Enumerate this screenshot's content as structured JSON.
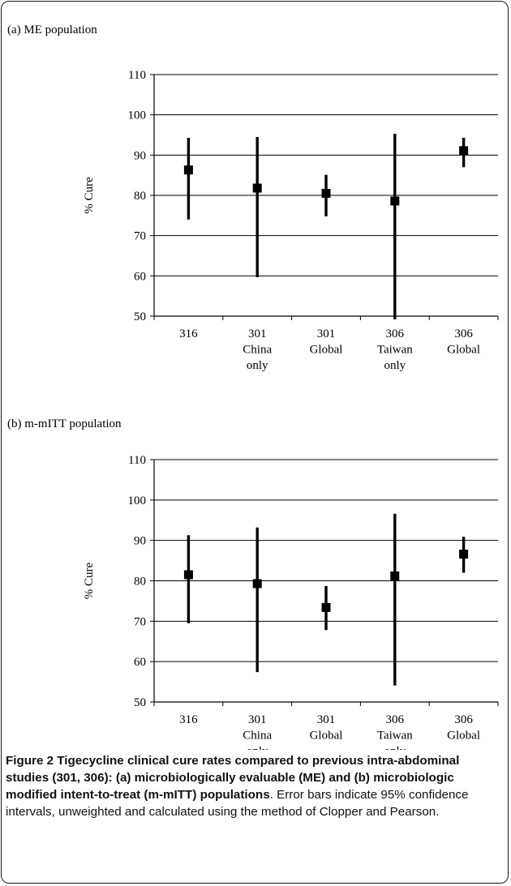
{
  "chart_data": [
    {
      "type": "scatter",
      "panel_label": "(a) ME population",
      "ylabel": "% Cure",
      "ylim": [
        50,
        110
      ],
      "yticks": [
        50,
        60,
        70,
        80,
        90,
        100,
        110
      ],
      "grid": true,
      "categories": [
        {
          "lines": [
            "316"
          ]
        },
        {
          "lines": [
            "301",
            "China",
            "only"
          ]
        },
        {
          "lines": [
            "301",
            "Global"
          ]
        },
        {
          "lines": [
            "306",
            "Taiwan",
            "only"
          ]
        },
        {
          "lines": [
            "306",
            "Global"
          ]
        }
      ],
      "points": [
        {
          "value": 86.3,
          "ci_low": 74.0,
          "ci_high": 94.3
        },
        {
          "value": 81.8,
          "ci_low": 59.7,
          "ci_high": 94.5
        },
        {
          "value": 80.5,
          "ci_low": 74.8,
          "ci_high": 85.1
        },
        {
          "value": 78.6,
          "ci_low": 49.2,
          "ci_high": 95.3
        },
        {
          "value": 91.1,
          "ci_low": 87.0,
          "ci_high": 94.3
        }
      ]
    },
    {
      "type": "scatter",
      "panel_label": "(b) m-mITT population",
      "ylabel": "% Cure",
      "ylim": [
        50,
        110
      ],
      "yticks": [
        50,
        60,
        70,
        80,
        90,
        100,
        110
      ],
      "grid": true,
      "categories": [
        {
          "lines": [
            "316"
          ]
        },
        {
          "lines": [
            "301",
            "China",
            "only"
          ]
        },
        {
          "lines": [
            "301",
            "Global"
          ]
        },
        {
          "lines": [
            "306",
            "Taiwan",
            "only"
          ]
        },
        {
          "lines": [
            "306",
            "Global"
          ]
        }
      ],
      "points": [
        {
          "value": 81.5,
          "ci_low": 69.5,
          "ci_high": 91.3
        },
        {
          "value": 79.3,
          "ci_low": 57.4,
          "ci_high": 93.2
        },
        {
          "value": 73.4,
          "ci_low": 67.8,
          "ci_high": 78.7
        },
        {
          "value": 81.2,
          "ci_low": 54.1,
          "ci_high": 96.6
        },
        {
          "value": 86.6,
          "ci_low": 82.0,
          "ci_high": 90.9
        }
      ]
    }
  ],
  "caption": {
    "bold": "Figure 2 Tigecycline clinical cure rates compared to previous intra-abdominal studies (301, 306): (a) microbiologically evaluable (ME) and (b) microbiologic modified intent-to-treat (m-mITT) populations",
    "rest": ". Error bars indicate 95% confidence intervals, unweighted and calculated using the method of Clopper and Pearson."
  }
}
